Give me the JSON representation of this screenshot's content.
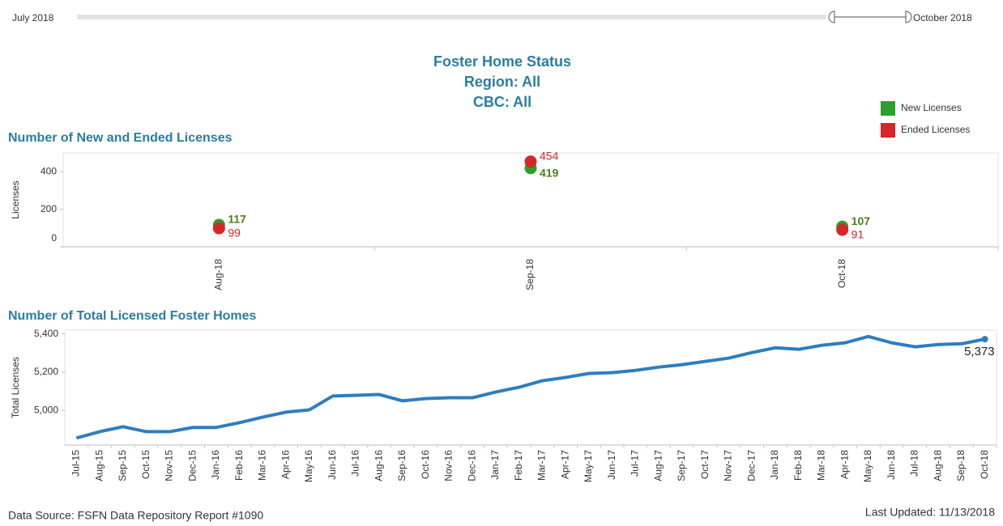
{
  "slider": {
    "start": "July 2018",
    "end": "October 2018"
  },
  "header": {
    "title": [
      "Foster Home Status",
      "Region: All",
      "CBC: All"
    ]
  },
  "chart_data": [
    {
      "type": "dot",
      "title": "Number of New and Ended Licenses",
      "ylabel": "Licenses",
      "categories": [
        "Aug-18",
        "Sep-18",
        "Oct-18"
      ],
      "series": [
        {
          "name": "New Licenses",
          "color": "#2ca02c",
          "label_color": "#4d7f17",
          "values": [
            117,
            419,
            107
          ]
        },
        {
          "name": "Ended Licenses",
          "color": "#d62728",
          "label_color": "#d62728",
          "values": [
            99,
            454,
            91
          ]
        }
      ],
      "ylim": [
        0,
        500
      ],
      "yticks": [
        0,
        200,
        400
      ]
    },
    {
      "type": "line",
      "title": "Number of Total Licensed Foster Homes",
      "ylabel": "Total Licenses",
      "categories": [
        "Jul-15",
        "Aug-15",
        "Sep-15",
        "Oct-15",
        "Nov-15",
        "Dec-15",
        "Jan-16",
        "Feb-16",
        "Mar-16",
        "Apr-16",
        "May-16",
        "Jun-16",
        "Jul-16",
        "Aug-16",
        "Sep-16",
        "Oct-16",
        "Nov-16",
        "Dec-16",
        "Jan-17",
        "Feb-17",
        "Mar-17",
        "Apr-17",
        "May-17",
        "Jun-17",
        "Jul-17",
        "Aug-17",
        "Sep-17",
        "Oct-17",
        "Nov-17",
        "Dec-17",
        "Jan-18",
        "Feb-18",
        "Mar-18",
        "Apr-18",
        "May-18",
        "Jun-18",
        "Jul-18",
        "Aug-18",
        "Sep-18",
        "Oct-18"
      ],
      "series": [
        {
          "name": "Total Licenses",
          "color": "#2f7dbf",
          "values": [
            4857,
            4890,
            4916,
            4890,
            4890,
            4912,
            4912,
            4937,
            4966,
            4992,
            5004,
            5076,
            5080,
            5084,
            5051,
            5063,
            5067,
            5067,
            5097,
            5122,
            5156,
            5173,
            5194,
            5198,
            5210,
            5227,
            5240,
            5257,
            5274,
            5303,
            5328,
            5320,
            5341,
            5354,
            5387,
            5354,
            5333,
            5345,
            5349,
            5373
          ],
          "value_labels": [
            null,
            null,
            null,
            null,
            null,
            null,
            null,
            null,
            null,
            null,
            null,
            null,
            null,
            null,
            null,
            null,
            null,
            null,
            null,
            null,
            null,
            null,
            null,
            null,
            null,
            null,
            null,
            null,
            null,
            null,
            null,
            null,
            null,
            null,
            null,
            null,
            null,
            null,
            null,
            "5,373"
          ]
        }
      ],
      "ylim": [
        4820,
        5420
      ],
      "yticks": [
        {
          "value": 5000,
          "label": "5,000"
        },
        {
          "value": 5200,
          "label": "5,200"
        },
        {
          "value": 5400,
          "label": "5,400"
        }
      ]
    }
  ],
  "footer": {
    "source": "Data Source: FSFN Data Repository Report #1090",
    "updated": "Last Updated: 11/13/2018"
  }
}
